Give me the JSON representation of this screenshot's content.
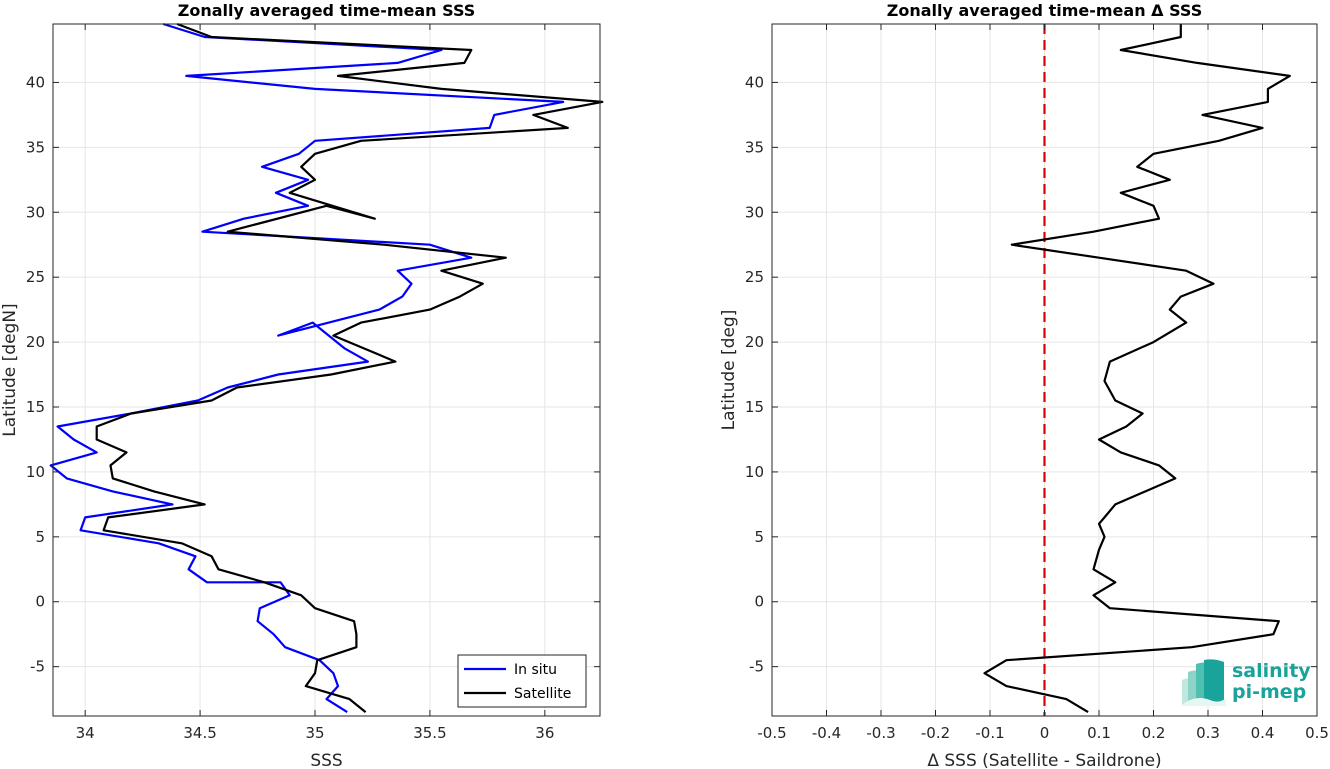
{
  "chart_data": [
    {
      "type": "line",
      "title": "Zonally averaged time-mean SSS",
      "xlabel": "SSS",
      "ylabel": "Latitude [degN]",
      "xlim": [
        33.86,
        36.24
      ],
      "ylim": [
        -8.8,
        44.5
      ],
      "xticks": [
        34,
        34.5,
        35,
        35.5,
        36
      ],
      "xtick_labels": [
        "34",
        "34.5",
        "35",
        "35.5",
        "36"
      ],
      "yticks": [
        -5,
        0,
        5,
        10,
        15,
        20,
        25,
        30,
        35,
        40
      ],
      "ytick_labels": [
        "-5",
        "0",
        "5",
        "10",
        "15",
        "20",
        "25",
        "30",
        "35",
        "40"
      ],
      "grid": true,
      "legend_position": "bottom-right",
      "series": [
        {
          "name": "In situ",
          "color": "#0000ff",
          "points": [
            [
              35.14,
              -8.5
            ],
            [
              35.05,
              -7.5
            ],
            [
              35.1,
              -6.5
            ],
            [
              35.08,
              -5.5
            ],
            [
              35.02,
              -4.5
            ],
            [
              34.87,
              -3.5
            ],
            [
              34.82,
              -2.5
            ],
            [
              34.75,
              -1.5
            ],
            [
              34.76,
              -0.5
            ],
            [
              34.89,
              0.5
            ],
            [
              34.85,
              1.5
            ],
            [
              34.53,
              1.5
            ],
            [
              34.45,
              2.5
            ],
            [
              34.48,
              3.5
            ],
            [
              34.32,
              4.5
            ],
            [
              33.98,
              5.5
            ],
            [
              34.0,
              6.5
            ],
            [
              34.38,
              7.5
            ],
            [
              34.12,
              8.5
            ],
            [
              33.92,
              9.5
            ],
            [
              33.85,
              10.5
            ],
            [
              34.05,
              11.5
            ],
            [
              33.95,
              12.5
            ],
            [
              33.88,
              13.5
            ],
            [
              34.2,
              14.5
            ],
            [
              34.49,
              15.5
            ],
            [
              34.62,
              16.5
            ],
            [
              34.84,
              17.5
            ],
            [
              35.23,
              18.5
            ],
            [
              35.13,
              19.5
            ],
            [
              34.99,
              21.5
            ],
            [
              34.84,
              20.5
            ],
            [
              35.28,
              22.5
            ],
            [
              35.38,
              23.5
            ],
            [
              35.42,
              24.5
            ],
            [
              35.36,
              25.5
            ],
            [
              35.68,
              26.5
            ],
            [
              35.5,
              27.5
            ],
            [
              34.51,
              28.5
            ],
            [
              34.69,
              29.5
            ],
            [
              34.97,
              30.5
            ],
            [
              34.83,
              31.5
            ],
            [
              34.97,
              32.5
            ],
            [
              34.77,
              33.5
            ],
            [
              34.93,
              34.5
            ],
            [
              35.0,
              35.5
            ],
            [
              35.76,
              36.5
            ],
            [
              35.78,
              37.5
            ],
            [
              36.08,
              38.5
            ],
            [
              35.0,
              39.5
            ],
            [
              34.44,
              40.5
            ],
            [
              35.36,
              41.5
            ],
            [
              35.55,
              42.5
            ],
            [
              34.52,
              43.5
            ],
            [
              34.34,
              44.5
            ]
          ]
        },
        {
          "name": "Satellite",
          "color": "#000000",
          "points": [
            [
              35.22,
              -8.5
            ],
            [
              35.15,
              -7.5
            ],
            [
              34.96,
              -6.5
            ],
            [
              35.0,
              -5.5
            ],
            [
              35.01,
              -4.5
            ],
            [
              35.18,
              -3.5
            ],
            [
              35.18,
              -2.5
            ],
            [
              35.17,
              -1.5
            ],
            [
              35.0,
              -0.5
            ],
            [
              34.94,
              0.5
            ],
            [
              34.78,
              1.5
            ],
            [
              34.58,
              2.5
            ],
            [
              34.55,
              3.5
            ],
            [
              34.42,
              4.5
            ],
            [
              34.08,
              5.5
            ],
            [
              34.1,
              6.5
            ],
            [
              34.52,
              7.5
            ],
            [
              34.3,
              8.5
            ],
            [
              34.12,
              9.5
            ],
            [
              34.11,
              10.5
            ],
            [
              34.18,
              11.5
            ],
            [
              34.05,
              12.5
            ],
            [
              34.05,
              13.5
            ],
            [
              34.2,
              14.5
            ],
            [
              34.55,
              15.5
            ],
            [
              34.66,
              16.5
            ],
            [
              35.07,
              17.5
            ],
            [
              35.35,
              18.5
            ],
            [
              35.08,
              20.5
            ],
            [
              35.2,
              21.5
            ],
            [
              35.5,
              22.5
            ],
            [
              35.63,
              23.5
            ],
            [
              35.73,
              24.5
            ],
            [
              35.55,
              25.5
            ],
            [
              35.83,
              26.5
            ],
            [
              35.3,
              27.5
            ],
            [
              34.62,
              28.5
            ],
            [
              35.05,
              30.5
            ],
            [
              35.26,
              29.5
            ],
            [
              34.89,
              31.5
            ],
            [
              35.0,
              32.5
            ],
            [
              34.94,
              33.5
            ],
            [
              35.0,
              34.5
            ],
            [
              35.2,
              35.5
            ],
            [
              36.1,
              36.5
            ],
            [
              35.95,
              37.5
            ],
            [
              36.25,
              38.5
            ],
            [
              35.55,
              39.5
            ],
            [
              35.1,
              40.5
            ],
            [
              35.65,
              41.5
            ],
            [
              35.68,
              42.5
            ],
            [
              34.55,
              43.5
            ],
            [
              34.4,
              44.5
            ]
          ]
        }
      ]
    },
    {
      "type": "line",
      "title": "Zonally averaged time-mean Δ SSS",
      "xlabel": "Δ SSS (Satellite - Saildrone)",
      "ylabel": "Latitude [deg]",
      "xlim": [
        -0.5,
        0.5
      ],
      "ylim": [
        -8.8,
        44.5
      ],
      "xticks": [
        -0.5,
        -0.4,
        -0.3,
        -0.2,
        -0.1,
        0,
        0.1,
        0.2,
        0.3,
        0.4,
        0.5
      ],
      "xtick_labels": [
        "-0.5",
        "-0.4",
        "-0.3",
        "-0.2",
        "-0.1",
        "0",
        "0.1",
        "0.2",
        "0.3",
        "0.4",
        "0.5"
      ],
      "yticks": [
        -5,
        0,
        5,
        10,
        15,
        20,
        25,
        30,
        35,
        40
      ],
      "ytick_labels": [
        "-5",
        "0",
        "5",
        "10",
        "15",
        "20",
        "25",
        "30",
        "35",
        "40"
      ],
      "grid": true,
      "reference_line": {
        "x": 0,
        "color": "#e00000",
        "style": "dashed"
      },
      "series": [
        {
          "color": "#000000",
          "points": [
            [
              0.08,
              -8.5
            ],
            [
              0.04,
              -7.5
            ],
            [
              -0.07,
              -6.5
            ],
            [
              -0.11,
              -5.5
            ],
            [
              -0.07,
              -4.5
            ],
            [
              0.27,
              -3.5
            ],
            [
              0.42,
              -2.5
            ],
            [
              0.43,
              -1.5
            ],
            [
              0.12,
              -0.5
            ],
            [
              0.09,
              0.5
            ],
            [
              0.13,
              1.5
            ],
            [
              0.09,
              2.5
            ],
            [
              0.1,
              4.0
            ],
            [
              0.11,
              5.0
            ],
            [
              0.1,
              6.0
            ],
            [
              0.11,
              6.5
            ],
            [
              0.13,
              7.5
            ],
            [
              0.24,
              9.5
            ],
            [
              0.21,
              10.5
            ],
            [
              0.14,
              11.5
            ],
            [
              0.1,
              12.5
            ],
            [
              0.15,
              13.5
            ],
            [
              0.18,
              14.5
            ],
            [
              0.13,
              15.5
            ],
            [
              0.11,
              17.0
            ],
            [
              0.12,
              18.5
            ],
            [
              0.2,
              20.0
            ],
            [
              0.26,
              21.5
            ],
            [
              0.23,
              22.5
            ],
            [
              0.25,
              23.5
            ],
            [
              0.31,
              24.5
            ],
            [
              0.26,
              25.5
            ],
            [
              0.1,
              26.5
            ],
            [
              -0.06,
              27.5
            ],
            [
              0.09,
              28.5
            ],
            [
              0.21,
              29.5
            ],
            [
              0.2,
              30.5
            ],
            [
              0.14,
              31.5
            ],
            [
              0.23,
              32.5
            ],
            [
              0.17,
              33.5
            ],
            [
              0.2,
              34.5
            ],
            [
              0.32,
              35.5
            ],
            [
              0.4,
              36.5
            ],
            [
              0.29,
              37.5
            ],
            [
              0.41,
              38.5
            ],
            [
              0.41,
              39.5
            ],
            [
              0.45,
              40.5
            ],
            [
              0.28,
              41.5
            ],
            [
              0.14,
              42.5
            ],
            [
              0.25,
              43.5
            ],
            [
              0.25,
              44.5
            ]
          ]
        }
      ]
    }
  ],
  "legend": {
    "in_situ_label": "In situ",
    "satellite_label": "Satellite"
  },
  "logo": {
    "line1": "salinity",
    "line2": "pi-mep",
    "color": "#1aa39a"
  }
}
